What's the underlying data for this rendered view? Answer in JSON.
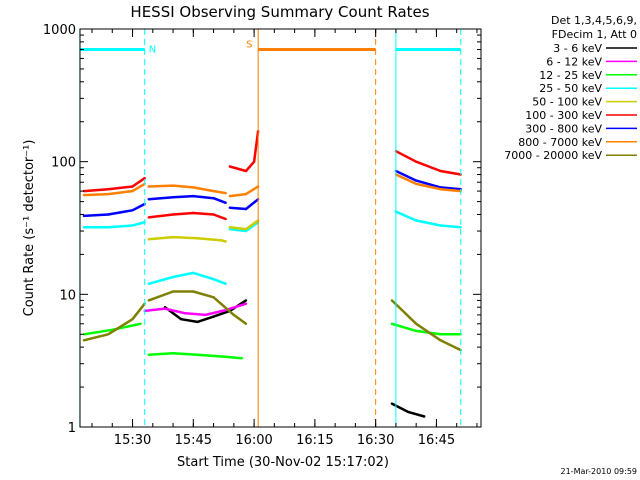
{
  "chart_data": {
    "type": "line",
    "title": "HESSI Observing Summary Count Rates",
    "xlabel": "Start Time (30-Nov-02 15:17:02)",
    "ylabel": "Count Rate (s⁻¹ detector⁻¹)",
    "ylim": [
      1,
      1000
    ],
    "yscale": "log",
    "xlim": [
      "15:17:02",
      "16:56:00"
    ],
    "x_ticks": [
      "15:30",
      "15:45",
      "16:00",
      "16:15",
      "16:30",
      "16:45"
    ],
    "y_ticks": [
      "1",
      "10",
      "100",
      "1000"
    ],
    "footer_date": "21-Mar-2010 09:59",
    "legend": {
      "header": [
        "Det 1,3,4,5,6,9,",
        "FDecim 1, Att 0"
      ],
      "entries": [
        {
          "label": "3 - 6 keV",
          "color": "#000000"
        },
        {
          "label": "6 - 12 keV",
          "color": "#ff00ff"
        },
        {
          "label": "12 - 25 keV",
          "color": "#00ff00"
        },
        {
          "label": "25 - 50 keV",
          "color": "#00ffff"
        },
        {
          "label": "50 - 100 keV",
          "color": "#cccc00"
        },
        {
          "label": "100 - 300 keV",
          "color": "#ff0000"
        },
        {
          "label": "300 - 800 keV",
          "color": "#0000ff"
        },
        {
          "label": "800 - 7000 keV",
          "color": "#ff8000"
        },
        {
          "label": "7000 - 20000 keV",
          "color": "#808000"
        }
      ]
    },
    "markers": [
      {
        "label": "N",
        "color": "#00ffff",
        "start": "15:17",
        "end": "15:33",
        "level": 700
      },
      {
        "label": "S",
        "color": "#ff8000",
        "start": "16:01",
        "end": "16:30",
        "level": 700
      },
      {
        "label": "",
        "color": "#00ffff",
        "start": "16:35",
        "end": "16:51",
        "level": 700
      }
    ],
    "series": [
      {
        "name": "3 - 6 keV",
        "color": "#000000",
        "segments": [
          {
            "x": [
              "15:38",
              "15:42",
              "15:46",
              "15:50",
              "15:54",
              "15:58"
            ],
            "y": [
              8,
              6.5,
              6.2,
              6.8,
              7.5,
              9
            ]
          },
          {
            "x": [
              "16:34",
              "16:38",
              "16:42"
            ],
            "y": [
              1.5,
              1.3,
              1.2
            ]
          }
        ]
      },
      {
        "name": "6 - 12 keV",
        "color": "#ff00ff",
        "segments": [
          {
            "x": [
              "15:33",
              "15:38",
              "15:43",
              "15:48",
              "15:53",
              "15:58"
            ],
            "y": [
              7.5,
              7.8,
              7.2,
              7.0,
              7.6,
              8.5
            ]
          }
        ]
      },
      {
        "name": "12 - 25 keV",
        "color": "#00ff00",
        "segments": [
          {
            "x": [
              "15:18",
              "15:25",
              "15:32"
            ],
            "y": [
              5.0,
              5.4,
              6.0
            ]
          },
          {
            "x": [
              "15:34",
              "15:40",
              "15:46",
              "15:52",
              "15:57"
            ],
            "y": [
              3.5,
              3.6,
              3.5,
              3.4,
              3.3
            ]
          },
          {
            "x": [
              "16:34",
              "16:40",
              "16:46",
              "16:51"
            ],
            "y": [
              6.0,
              5.3,
              5.0,
              5.0
            ]
          }
        ]
      },
      {
        "name": "25 - 50 keV",
        "color": "#00ffff",
        "segments": [
          {
            "x": [
              "15:18",
              "15:24",
              "15:30",
              "15:33"
            ],
            "y": [
              32,
              32,
              33,
              35
            ]
          },
          {
            "x": [
              "15:34",
              "15:40",
              "15:45",
              "15:50",
              "15:53"
            ],
            "y": [
              12,
              13.5,
              14.5,
              13,
              12
            ]
          },
          {
            "x": [
              "15:54",
              "15:58",
              "16:01"
            ],
            "y": [
              31,
              30,
              35
            ]
          },
          {
            "x": [
              "16:35",
              "16:40",
              "16:46",
              "16:51"
            ],
            "y": [
              42,
              36,
              33,
              32
            ]
          }
        ]
      },
      {
        "name": "50 - 100 keV",
        "color": "#cccc00",
        "segments": [
          {
            "x": [
              "15:34",
              "15:40",
              "15:46",
              "15:52",
              "15:53"
            ],
            "y": [
              26,
              27,
              26.5,
              25.5,
              25
            ]
          },
          {
            "x": [
              "15:54",
              "15:58",
              "16:01"
            ],
            "y": [
              32,
              31,
              36
            ]
          }
        ]
      },
      {
        "name": "100 - 300 keV",
        "color": "#ff0000",
        "segments": [
          {
            "x": [
              "15:18",
              "15:24",
              "15:30",
              "15:33"
            ],
            "y": [
              60,
              62,
              65,
              75
            ]
          },
          {
            "x": [
              "15:34",
              "15:40",
              "15:45",
              "15:50",
              "15:53"
            ],
            "y": [
              38,
              40,
              41,
              40,
              37
            ]
          },
          {
            "x": [
              "15:54",
              "15:58",
              "16:00",
              "16:01"
            ],
            "y": [
              92,
              85,
              100,
              170
            ]
          },
          {
            "x": [
              "16:35",
              "16:40",
              "16:46",
              "16:51"
            ],
            "y": [
              120,
              100,
              85,
              80
            ]
          }
        ]
      },
      {
        "name": "300 - 800 keV",
        "color": "#0000ff",
        "segments": [
          {
            "x": [
              "15:18",
              "15:24",
              "15:30",
              "15:33"
            ],
            "y": [
              39,
              40,
              43,
              48
            ]
          },
          {
            "x": [
              "15:34",
              "15:40",
              "15:45",
              "15:50",
              "15:53"
            ],
            "y": [
              52,
              54,
              55,
              53,
              49
            ]
          },
          {
            "x": [
              "15:54",
              "15:58",
              "16:01"
            ],
            "y": [
              45,
              44,
              52
            ]
          },
          {
            "x": [
              "16:35",
              "16:40",
              "16:46",
              "16:51"
            ],
            "y": [
              85,
              72,
              64,
              62
            ]
          }
        ]
      },
      {
        "name": "800 - 7000 keV",
        "color": "#ff8000",
        "segments": [
          {
            "x": [
              "15:18",
              "15:24",
              "15:30",
              "15:33"
            ],
            "y": [
              56,
              57,
              60,
              68
            ]
          },
          {
            "x": [
              "15:34",
              "15:40",
              "15:45",
              "15:50",
              "15:53"
            ],
            "y": [
              65,
              66,
              64,
              60,
              58
            ]
          },
          {
            "x": [
              "15:54",
              "15:58",
              "16:01"
            ],
            "y": [
              55,
              57,
              65
            ]
          },
          {
            "x": [
              "16:35",
              "16:40",
              "16:46",
              "16:51"
            ],
            "y": [
              80,
              68,
              62,
              60
            ]
          }
        ]
      },
      {
        "name": "7000 - 20000 keV",
        "color": "#808000",
        "segments": [
          {
            "x": [
              "15:18",
              "15:24",
              "15:30",
              "15:33"
            ],
            "y": [
              4.5,
              5.0,
              6.5,
              8.5
            ]
          },
          {
            "x": [
              "15:34",
              "15:40",
              "15:45",
              "15:50",
              "15:55",
              "15:58"
            ],
            "y": [
              9.0,
              10.5,
              10.5,
              9.5,
              7.0,
              6.0
            ]
          },
          {
            "x": [
              "16:34",
              "16:40",
              "16:46",
              "16:51"
            ],
            "y": [
              9.0,
              6.0,
              4.5,
              3.8
            ]
          }
        ]
      }
    ]
  }
}
